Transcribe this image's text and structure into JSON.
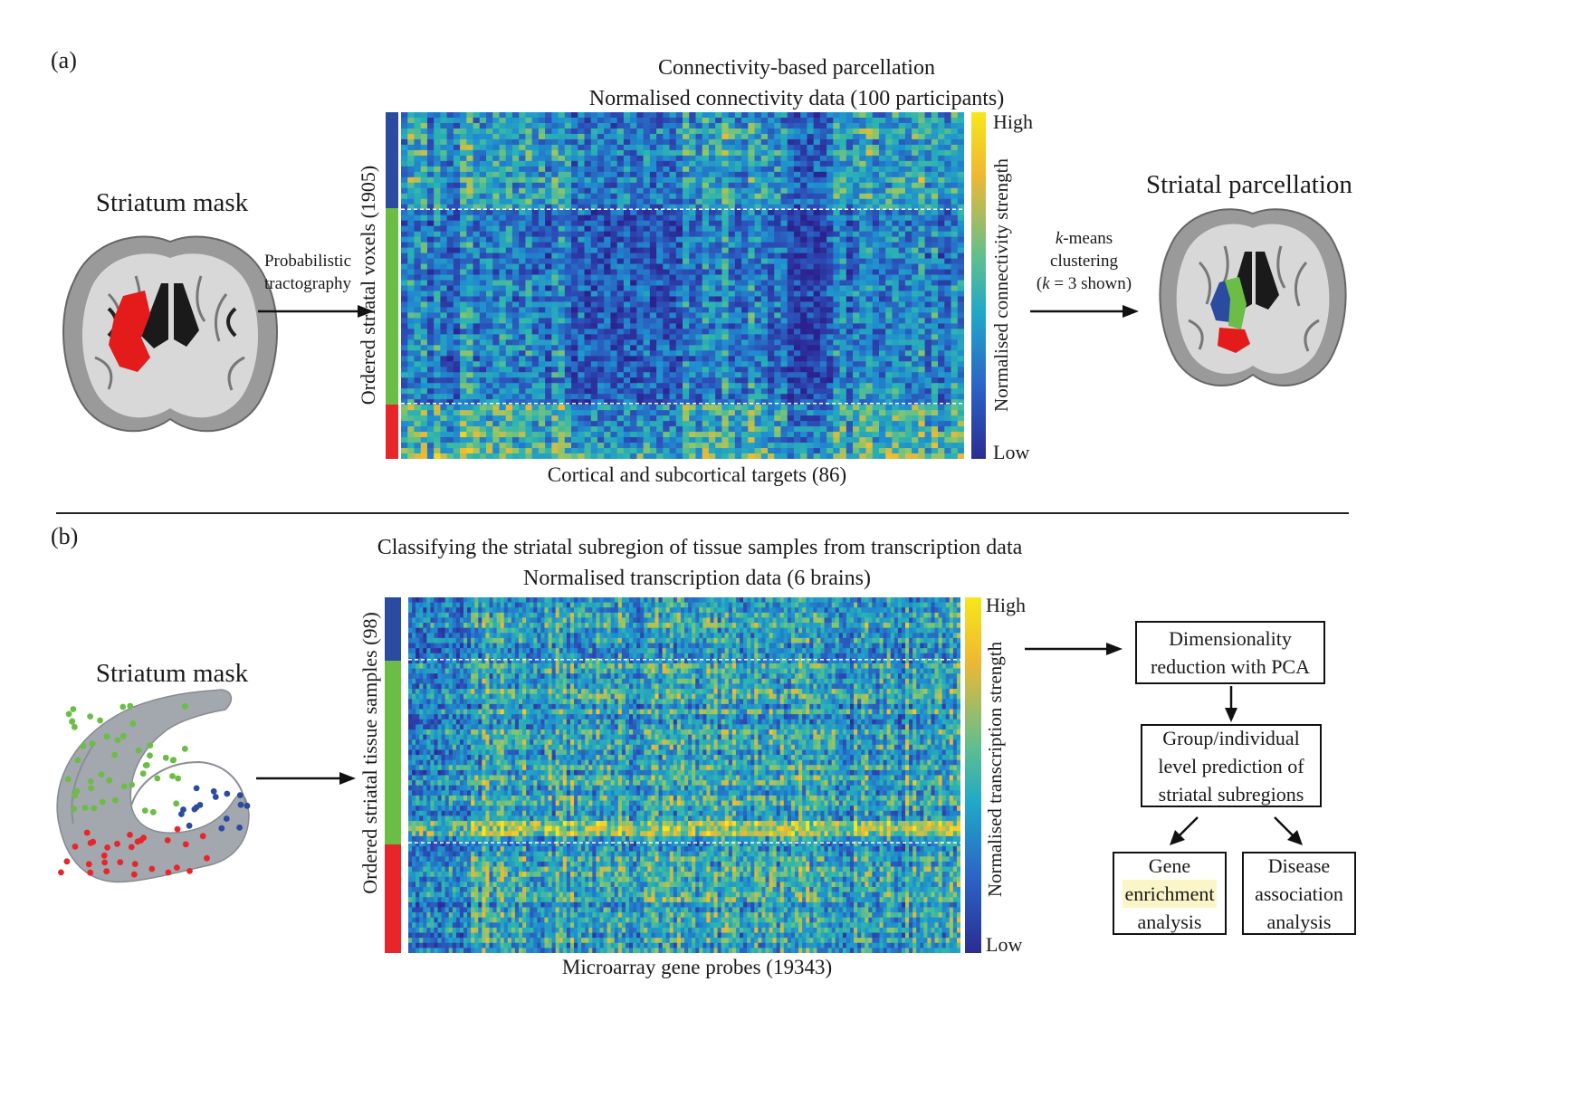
{
  "panel_a": {
    "label": "(a)",
    "title": "Connectivity-based parcellation",
    "subtitle": "Normalised connectivity data (100 participants)",
    "left_image_label": "Striatum mask",
    "arrow1_label_line1": "Probabilistic",
    "arrow1_label_line2": "tractography",
    "y_label": "Ordered striatal voxels (1905)",
    "x_label": "Cortical and subcortical targets (86)",
    "colorbar_label": "Normalised connectivity strength",
    "colorbar_high": "High",
    "colorbar_low": "Low",
    "arrow2_line1_italic": "k",
    "arrow2_line1_rest": "-means",
    "arrow2_line2": "clustering",
    "arrow2_line3_open": "(",
    "arrow2_line3_italic": "k",
    "arrow2_line3_rest": " = 3 shown)",
    "right_image_label": "Striatal parcellation"
  },
  "panel_b": {
    "label": "(b)",
    "title": "Classifying the striatal subregion of tissue samples from transcription data",
    "subtitle": "Normalised transcription data (6 brains)",
    "left_image_label": "Striatum mask",
    "y_label": "Ordered striatal tissue samples (98)",
    "x_label": "Microarray gene probes (19343)",
    "colorbar_label": "Normalised transcription strength",
    "colorbar_high": "High",
    "colorbar_low": "Low",
    "flow": {
      "box1_line1": "Dimensionality",
      "box1_line2": "reduction with PCA",
      "box2_line1": "Group/individual",
      "box2_line2": "level prediction of",
      "box2_line3": "striatal subregions",
      "box3_line1": "Gene",
      "box3_line2": "enrichment",
      "box3_line3": "analysis",
      "box4_line1": "Disease",
      "box4_line2": "association",
      "box4_line3": "analysis"
    }
  },
  "colors": {
    "cluster_1": "#2b4ba0",
    "cluster_2": "#6bbd45",
    "cluster_3": "#e8262a",
    "highlight": "#fbf5c8",
    "heatmap_low": "#2a1f8f",
    "heatmap_high": "#f5e520"
  }
}
